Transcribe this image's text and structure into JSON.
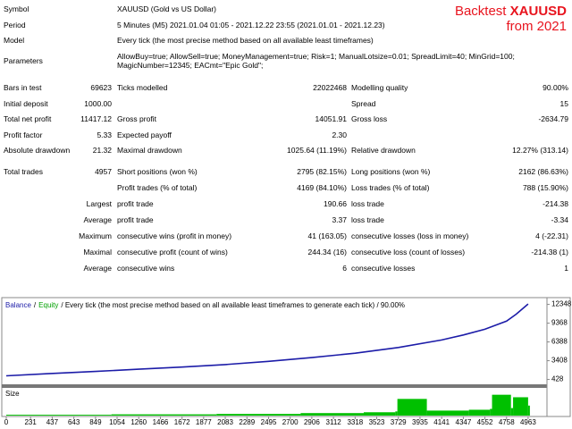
{
  "badge": {
    "prefix": "Backtest",
    "symbol": "XAUUSD",
    "subtitle": "from 2021"
  },
  "info": [
    [
      "Symbol",
      [
        "XAUUSD (Gold vs US Dollar)"
      ]
    ],
    [
      "Period",
      [
        "5 Minutes (M5) 2021.01.04 01:05 - 2021.12.22 23:55 (2021.01.01 - 2021.12.23)"
      ]
    ],
    [
      "Model",
      [
        "Every tick (the most precise method based on all available least timeframes)"
      ]
    ],
    [
      "Parameters",
      [
        "AllowBuy=true; AllowSell=true; MoneyManagement=true; Risk=1; ManualLotsize=0.01; SpreadLimit=40; MinGrid=100;",
        "MagicNumber=12345; EACmt=\"Epic Gold\";"
      ]
    ]
  ],
  "stats": [
    [
      "Bars in test",
      "69623",
      "Ticks modelled",
      "22022468",
      "Modelling quality",
      "90.00%"
    ],
    [
      "Initial deposit",
      "1000.00",
      null,
      null,
      "Spread",
      "15"
    ],
    [
      "Total net profit",
      "11417.12",
      "Gross profit",
      "14051.91",
      "Gross loss",
      "-2634.79"
    ],
    [
      "Profit factor",
      "5.33",
      "Expected payoff",
      "2.30",
      null,
      null
    ],
    [
      "Absolute drawdown",
      "21.32",
      "Maximal drawdown",
      "1025.64 (11.19%)",
      "Relative drawdown",
      "12.27% (313.14)"
    ],
    [
      "Total trades",
      "4957",
      "Short positions (won %)",
      "2795 (82.15%)",
      "Long positions (won %)",
      "2162 (86.63%)"
    ],
    [
      null,
      null,
      "Profit trades (% of total)",
      "4169 (84.10%)",
      "Loss trades (% of total)",
      "788 (15.90%)"
    ],
    [
      null,
      "Largest",
      "profit trade",
      "190.66",
      "loss trade",
      "-214.38"
    ],
    [
      null,
      "Average",
      "profit trade",
      "3.37",
      "loss trade",
      "-3.34"
    ],
    [
      null,
      "Maximum",
      "consecutive wins (profit in money)",
      "41 (163.05)",
      "consecutive losses (loss in money)",
      "4 (-22.31)"
    ],
    [
      null,
      "Maximal",
      "consecutive profit (count of wins)",
      "244.34 (16)",
      "consecutive loss (count of losses)",
      "-214.38 (1)"
    ],
    [
      null,
      "Average",
      "consecutive wins",
      "6",
      "consecutive losses",
      "1"
    ]
  ],
  "chart_data": {
    "type": "line",
    "legend": {
      "balance": "Balance",
      "separator": "/",
      "equity": "Equity",
      "description": "/ Every tick (the most precise method based on all available least timeframes to generate each tick) / 90.00%"
    },
    "x": [
      0,
      400,
      849,
      1260,
      1672,
      2083,
      2495,
      2906,
      3318,
      3729,
      4141,
      4347,
      4552,
      4758,
      4850,
      4963
    ],
    "series": [
      {
        "name": "Balance",
        "color": "#1c1ca8",
        "values": [
          1000,
          1350,
          1700,
          2050,
          2400,
          2800,
          3300,
          3900,
          4600,
          5500,
          6700,
          7500,
          8400,
          9700,
          10800,
          12417
        ]
      }
    ],
    "xlim": [
      0,
      5100
    ],
    "xticks": [
      0,
      231,
      437,
      643,
      849,
      1054,
      1260,
      1466,
      1672,
      1877,
      2083,
      2289,
      2495,
      2700,
      2906,
      3112,
      3318,
      3523,
      3729,
      3935,
      4141,
      4347,
      4552,
      4758,
      4963
    ],
    "ylim": [
      -200,
      13000
    ],
    "yticks": [
      428,
      3408,
      6388,
      9368,
      12348
    ],
    "size": {
      "label": "Size",
      "color": "#00c000",
      "x": [
        0,
        1000,
        2000,
        2800,
        3400,
        3700,
        3720,
        4000,
        4400,
        4600,
        4620,
        4800,
        4820,
        4963
      ],
      "values": [
        0.01,
        0.015,
        0.02,
        0.03,
        0.04,
        0.05,
        0.2,
        0.06,
        0.07,
        0.08,
        0.25,
        0.09,
        0.22,
        0.12
      ],
      "ylim": [
        0,
        0.3
      ]
    }
  }
}
